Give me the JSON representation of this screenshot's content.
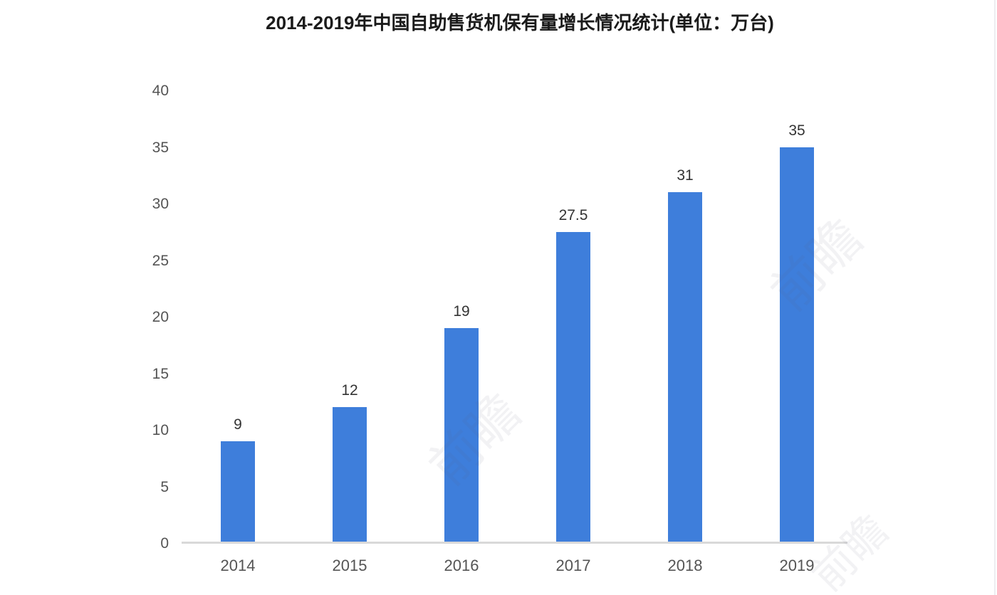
{
  "title": "2014-2019年中国自助售货机保有量增长情况统计(单位：万台)",
  "watermark_text": "前瞻",
  "colors": {
    "bar": "#3e7edb",
    "axis_line": "#d9d9d9",
    "tick_text": "#545454",
    "value_text": "#333333",
    "title_text": "#1b1b1b"
  },
  "chart_data": {
    "type": "bar",
    "title": "2014-2019年中国自助售货机保有量增长情况统计(单位：万台)",
    "categories": [
      "2014",
      "2015",
      "2016",
      "2017",
      "2018",
      "2019"
    ],
    "values": [
      9,
      12,
      19,
      27.5,
      31,
      35
    ],
    "value_labels": [
      "9",
      "12",
      "19",
      "27.5",
      "31",
      "35"
    ],
    "xlabel": "",
    "ylabel": "",
    "ylim": [
      0,
      40
    ],
    "yticks": [
      0,
      5,
      10,
      15,
      20,
      25,
      30,
      35,
      40
    ],
    "grid": false,
    "legend": "none",
    "bar_color": "#3e7edb"
  }
}
